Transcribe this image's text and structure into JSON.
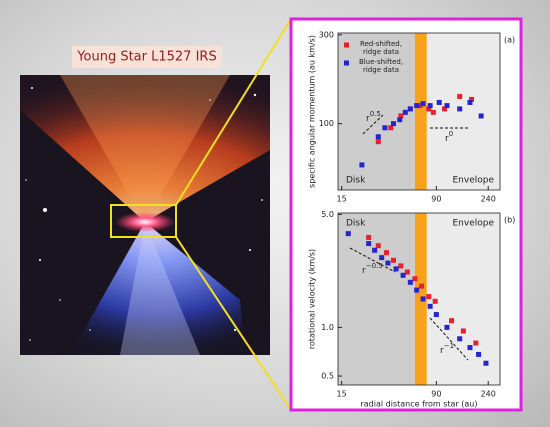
{
  "image_title": "Young Star L1527 IRS",
  "chart_data": [
    {
      "type": "scatter",
      "panel_label": "(a)",
      "ylabel": "specific angular momentum (au km/s)",
      "log_x": true,
      "log_y": true,
      "xlim": [
        14,
        300
      ],
      "xticks": [
        15,
        90,
        240
      ],
      "ylim": [
        44,
        307
      ],
      "yticks": [
        100,
        300
      ],
      "regions": [
        "Disk",
        "Envelope"
      ],
      "band": [
        60,
        75
      ],
      "band_color": "#f7a21b",
      "annotations": [
        {
          "base": "r",
          "sup": "0.5"
        },
        {
          "base": "r",
          "sup": "0"
        }
      ],
      "series": [
        {
          "name": "Red-shifted, ridge data",
          "color": "#e8202a",
          "x": [
            30,
            38,
            46,
            55,
            66,
            78,
            85,
            105,
            140,
            175
          ],
          "values": [
            80,
            95,
            110,
            120,
            125,
            120,
            115,
            120,
            140,
            135
          ]
        },
        {
          "name": "Blue-shifted, ridge data",
          "color": "#2424d0",
          "x": [
            22,
            30,
            34,
            40,
            45,
            50,
            55,
            62,
            70,
            80,
            95,
            110,
            140,
            170,
            210
          ],
          "values": [
            60,
            85,
            95,
            100,
            105,
            115,
            120,
            125,
            128,
            125,
            130,
            125,
            120,
            130,
            110
          ]
        }
      ]
    },
    {
      "type": "scatter",
      "panel_label": "(b)",
      "ylabel": "rotational velocity (km/s)",
      "xlabel": "radial distance from star (au)",
      "log_x": true,
      "log_y": true,
      "xlim": [
        14,
        300
      ],
      "xticks": [
        15,
        90,
        240
      ],
      "ylim": [
        0.44,
        5.1
      ],
      "yticks": [
        0.5,
        {
          "value": 1,
          "label": "1.0"
        },
        {
          "value": 5,
          "label": "5.0"
        }
      ],
      "regions": [
        "Disk",
        "Envelope"
      ],
      "band": [
        60,
        75
      ],
      "band_color": "#f7a21b",
      "annotations": [
        {
          "base": "r",
          "sup": "−0.5"
        },
        {
          "base": "r",
          "sup": "−1"
        }
      ],
      "series": [
        {
          "color": "#e8202a",
          "x": [
            25,
            30,
            35,
            40,
            46,
            52,
            60,
            68,
            78,
            88,
            120,
            150,
            190
          ],
          "values": [
            3.6,
            3.2,
            2.9,
            2.6,
            2.4,
            2.2,
            2.0,
            1.8,
            1.55,
            1.45,
            1.1,
            0.95,
            0.8
          ]
        },
        {
          "color": "#2424d0",
          "x": [
            17,
            25,
            28,
            32,
            36,
            42,
            48,
            55,
            62,
            70,
            80,
            90,
            110,
            140,
            170,
            200,
            230
          ],
          "values": [
            3.8,
            3.3,
            3.0,
            2.7,
            2.5,
            2.3,
            2.1,
            1.9,
            1.7,
            1.5,
            1.35,
            1.2,
            1.0,
            0.85,
            0.75,
            0.68,
            0.6
          ]
        }
      ]
    }
  ]
}
